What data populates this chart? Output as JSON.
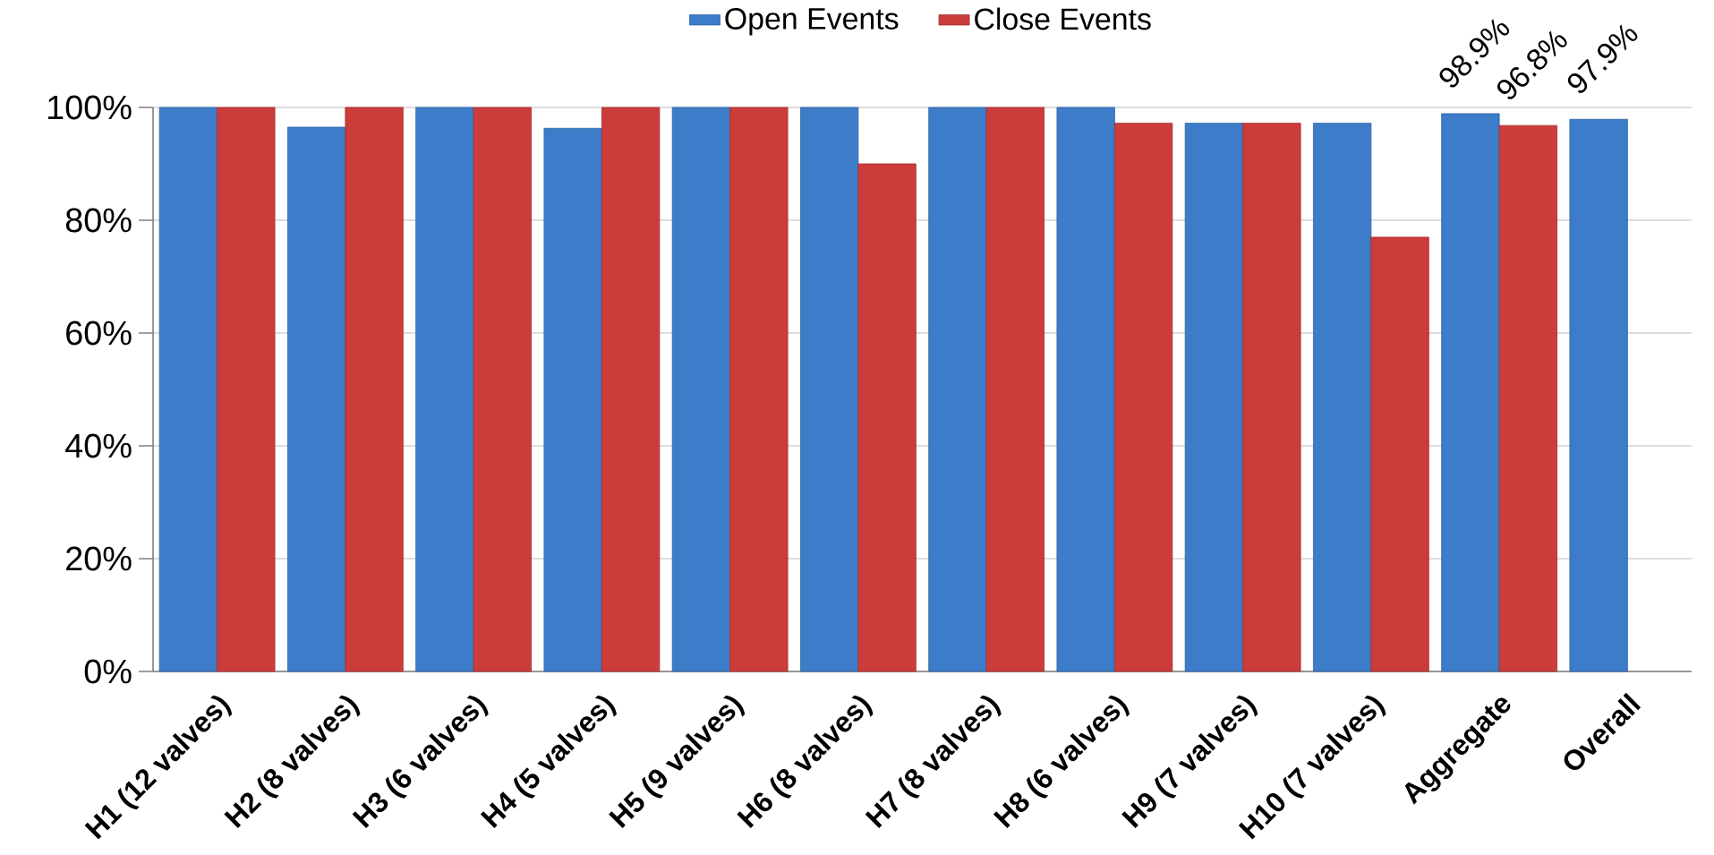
{
  "chart_data": {
    "type": "bar",
    "categories": [
      "H1 (12 valves)",
      "H2 (8 valves)",
      "H3 (6 valves)",
      "H4 (5 valves)",
      "H5 (9 valves)",
      "H6 (8 valves)",
      "H7 (8 valves)",
      "H8 (6 valves)",
      "H9 (7 valves)",
      "H10 (7 valves)",
      "Aggregate",
      "Overall"
    ],
    "series": [
      {
        "name": "Open Events",
        "color": "#3c7cc9",
        "values": [
          100,
          96.5,
          100,
          96.3,
          100,
          100,
          100,
          100,
          97.2,
          97.2,
          98.9,
          97.9
        ],
        "value_labels": [
          null,
          null,
          null,
          null,
          null,
          null,
          null,
          null,
          null,
          null,
          "98.9%",
          "97.9%"
        ]
      },
      {
        "name": "Close Events",
        "color": "#cc3c3a",
        "values": [
          100,
          100,
          100,
          100,
          100,
          90,
          100,
          97.2,
          97.2,
          77,
          96.8,
          null
        ],
        "value_labels": [
          null,
          null,
          null,
          null,
          null,
          null,
          null,
          null,
          null,
          null,
          "96.8%",
          null
        ]
      }
    ],
    "ylim": [
      0,
      100
    ],
    "yticks": [
      {
        "value": 0,
        "label": "0%"
      },
      {
        "value": 20,
        "label": "20%"
      },
      {
        "value": 40,
        "label": "40%"
      },
      {
        "value": 60,
        "label": "60%"
      },
      {
        "value": 80,
        "label": "80%"
      },
      {
        "value": 100,
        "label": "100%"
      }
    ],
    "grid": "y",
    "legend": "top"
  }
}
